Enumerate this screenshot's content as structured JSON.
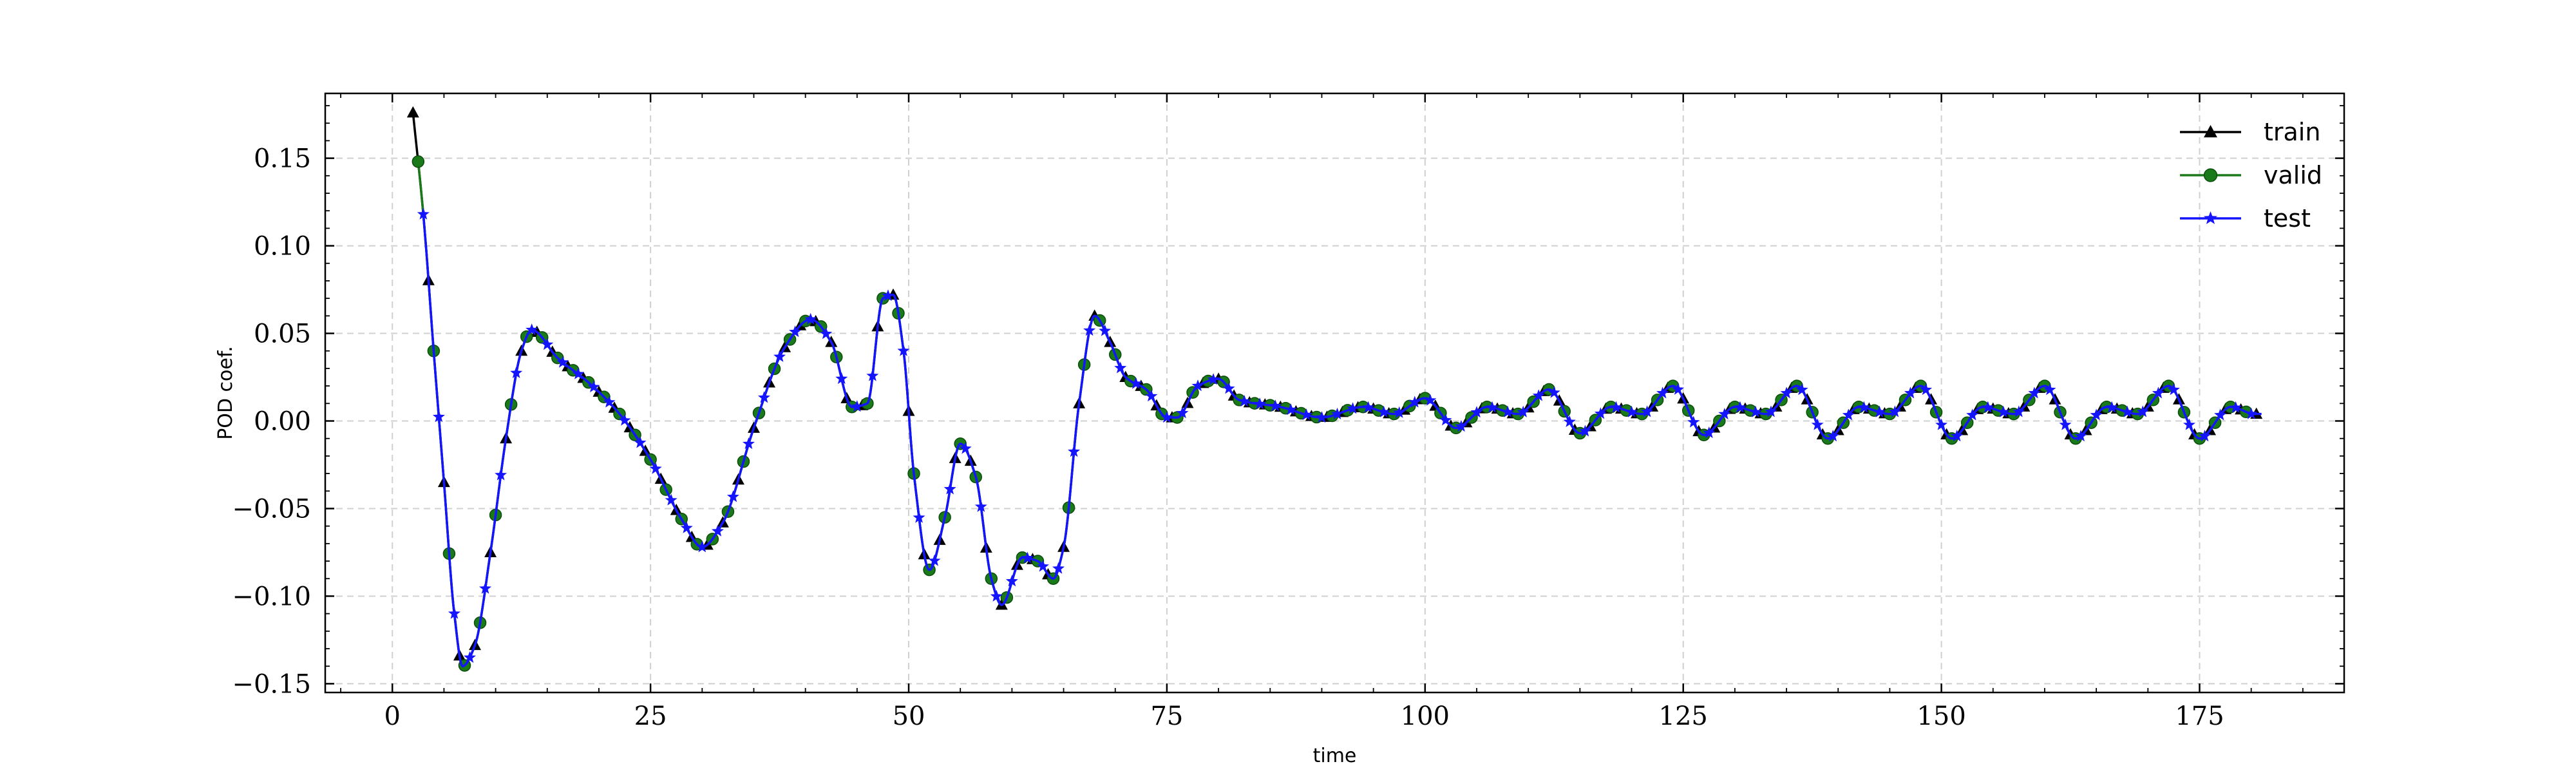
{
  "chart_data": {
    "type": "line",
    "xlabel": "time",
    "ylabel": "POD coef.",
    "xlim": [
      -6.5,
      189
    ],
    "ylim": [
      -0.155,
      0.187
    ],
    "x_ticks": [
      0,
      25,
      50,
      75,
      100,
      125,
      150,
      175
    ],
    "x_tick_labels": [
      "0",
      "25",
      "50",
      "75",
      "100",
      "125",
      "150",
      "175"
    ],
    "y_ticks": [
      0.15,
      0.1,
      0.05,
      0.0,
      -0.05,
      -0.1,
      -0.15
    ],
    "y_tick_labels": [
      "0.15",
      "0.10",
      "0.05",
      "0.00",
      "−0.05",
      "−0.10",
      "−0.15"
    ],
    "grid": true,
    "legend_position": "top-right",
    "curve_key_points": [
      [
        2,
        0.176
      ],
      [
        3,
        0.118
      ],
      [
        4,
        0.04
      ],
      [
        5,
        -0.035
      ],
      [
        6,
        -0.11
      ],
      [
        6.8,
        -0.14
      ],
      [
        8,
        -0.128
      ],
      [
        9.5,
        -0.075
      ],
      [
        11,
        -0.01
      ],
      [
        12.5,
        0.04
      ],
      [
        13.5,
        0.052
      ],
      [
        16,
        0.036
      ],
      [
        19,
        0.022
      ],
      [
        22,
        0.004
      ],
      [
        25,
        -0.022
      ],
      [
        28,
        -0.056
      ],
      [
        30,
        -0.072
      ],
      [
        32,
        -0.058
      ],
      [
        35,
        -0.004
      ],
      [
        38,
        0.042
      ],
      [
        40.5,
        0.058
      ],
      [
        42.5,
        0.045
      ],
      [
        44.5,
        0.008
      ],
      [
        46,
        0.01
      ],
      [
        47.5,
        0.07
      ],
      [
        48.5,
        0.072
      ],
      [
        49.5,
        0.04
      ],
      [
        50.5,
        -0.03
      ],
      [
        52,
        -0.085
      ],
      [
        53.5,
        -0.055
      ],
      [
        55,
        -0.013
      ],
      [
        56.5,
        -0.032
      ],
      [
        58,
        -0.09
      ],
      [
        59,
        -0.105
      ],
      [
        61,
        -0.078
      ],
      [
        62.5,
        -0.08
      ],
      [
        64,
        -0.09
      ],
      [
        65,
        -0.072
      ],
      [
        66.5,
        0.01
      ],
      [
        68,
        0.06
      ],
      [
        69.5,
        0.045
      ],
      [
        71,
        0.025
      ],
      [
        73,
        0.018
      ],
      [
        75,
        0.002
      ],
      [
        76,
        0.002
      ],
      [
        78,
        0.02
      ],
      [
        80,
        0.024
      ],
      [
        82,
        0.012
      ],
      [
        86,
        0.008
      ],
      [
        90,
        0.002
      ],
      [
        94,
        0.008
      ],
      [
        97,
        0.004
      ],
      [
        100,
        0.013
      ],
      [
        103,
        -0.004
      ],
      [
        106,
        0.008
      ],
      [
        109,
        0.004
      ],
      [
        112,
        0.018
      ],
      [
        115,
        -0.007
      ],
      [
        118,
        0.008
      ],
      [
        121,
        0.004
      ],
      [
        124,
        0.02
      ],
      [
        127,
        -0.008
      ],
      [
        130,
        0.008
      ],
      [
        133,
        0.004
      ],
      [
        136,
        0.02
      ],
      [
        139,
        -0.01
      ],
      [
        142,
        0.008
      ],
      [
        145,
        0.004
      ],
      [
        148,
        0.02
      ],
      [
        151,
        -0.01
      ],
      [
        154,
        0.008
      ],
      [
        157,
        0.004
      ],
      [
        160,
        0.02
      ],
      [
        163,
        -0.01
      ],
      [
        166,
        0.008
      ],
      [
        169,
        0.004
      ],
      [
        172,
        0.02
      ],
      [
        175,
        -0.01
      ],
      [
        178,
        0.008
      ],
      [
        180,
        0.004
      ]
    ],
    "marker_interval": 0.5,
    "series": [
      {
        "name": "train",
        "color": "#000000",
        "marker": "triangle",
        "x_start": 2.0,
        "x_end": 180.5
      },
      {
        "name": "valid",
        "color": "#1a7a1a",
        "marker": "circle",
        "x_start": 2.5,
        "x_end": 180.5
      },
      {
        "name": "test",
        "color": "#1414ff",
        "marker": "star",
        "x_start": 3.0,
        "x_end": 181
      }
    ],
    "colors": {
      "line": "#0000ff",
      "grid": "#d0d0d0",
      "axis": "#000000"
    }
  }
}
